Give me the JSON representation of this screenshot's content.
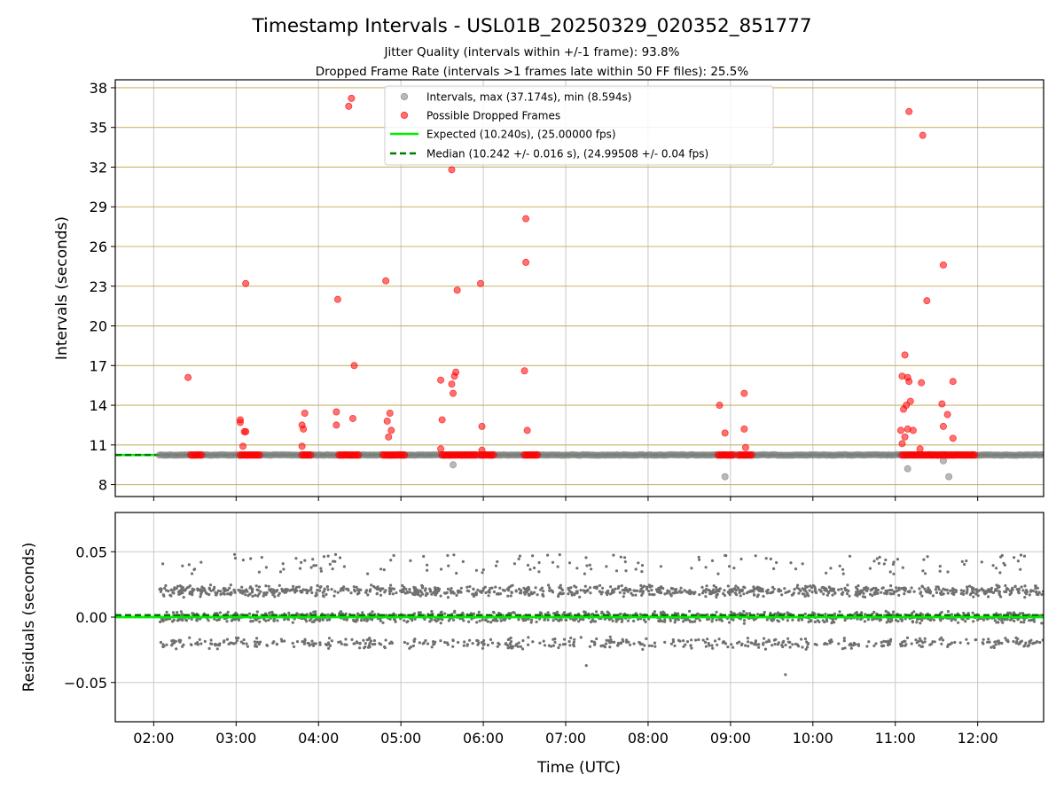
{
  "title": "Timestamp Intervals - USL01B_20250329_020352_851777",
  "subtitle_1": "Jitter Quality (intervals within +/-1 frame): 93.8%",
  "subtitle_2": "Dropped Frame Rate (intervals >1 frames late within 50 FF files): 25.5%",
  "xlabel": "Time (UTC)",
  "colors": {
    "intervals": "#808080",
    "dropped": "#ff0000",
    "expected": "#00ee00",
    "median": "#007a00",
    "residuals": "#707070",
    "top_grid": "#c8b46a",
    "grid": "#c8c8c8"
  },
  "legend": {
    "placement": "upper-center",
    "intervals": "Intervals, max (37.174s), min (8.594s)",
    "dropped": "Possible Dropped Frames",
    "expected": "Expected (10.240s), (25.00000 fps)",
    "median": "Median (10.242 +/- 0.016 s), (24.99508 +/- 0.04 fps)"
  },
  "chart_data": [
    {
      "type": "scatter",
      "panel": "intervals",
      "ylabel": "Intervals (seconds)",
      "xlim": [
        "01:32",
        "12:48"
      ],
      "ylim": [
        7.1,
        38.6
      ],
      "x_ticks": [
        "02:00",
        "03:00",
        "04:00",
        "05:00",
        "06:00",
        "07:00",
        "08:00",
        "09:00",
        "10:00",
        "11:00",
        "12:00"
      ],
      "y_ticks": [
        8,
        11,
        14,
        17,
        20,
        23,
        26,
        29,
        32,
        35,
        38
      ],
      "expected_line": 10.24,
      "median_line": 10.242,
      "normal_band": {
        "value": 10.24,
        "from": "02:04",
        "to": "12:48"
      },
      "dropped_clusters": [
        {
          "from": "02:27",
          "to": "02:35",
          "y": 10.24
        },
        {
          "from": "03:03",
          "to": "03:17",
          "y": 10.24
        },
        {
          "from": "03:48",
          "to": "03:55",
          "y": 10.24
        },
        {
          "from": "04:15",
          "to": "04:30",
          "y": 10.24
        },
        {
          "from": "04:47",
          "to": "05:03",
          "y": 10.24
        },
        {
          "from": "05:30",
          "to": "05:55",
          "y": 10.24
        },
        {
          "from": "05:58",
          "to": "06:08",
          "y": 10.24
        },
        {
          "from": "06:30",
          "to": "06:40",
          "y": 10.24
        },
        {
          "from": "08:51",
          "to": "09:02",
          "y": 10.24
        },
        {
          "from": "09:06",
          "to": "09:16",
          "y": 10.24
        },
        {
          "from": "11:05",
          "to": "11:59",
          "y": 10.24
        }
      ],
      "series": [
        {
          "name": "Intervals, max (37.174s), min (8.594s)",
          "points": [
            {
              "x": "05:38",
              "y": 9.5
            },
            {
              "x": "08:56",
              "y": 8.6
            },
            {
              "x": "11:09",
              "y": 9.2
            },
            {
              "x": "11:35",
              "y": 9.8
            },
            {
              "x": "11:39",
              "y": 8.6
            }
          ]
        },
        {
          "name": "Possible Dropped Frames",
          "points": [
            {
              "x": "02:25",
              "y": 16.1
            },
            {
              "x": "03:03",
              "y": 12.9
            },
            {
              "x": "03:03",
              "y": 12.7
            },
            {
              "x": "03:05",
              "y": 10.9
            },
            {
              "x": "03:06",
              "y": 12.0
            },
            {
              "x": "03:07",
              "y": 23.2
            },
            {
              "x": "03:07",
              "y": 12.0
            },
            {
              "x": "03:48",
              "y": 12.5
            },
            {
              "x": "03:48",
              "y": 10.9
            },
            {
              "x": "03:49",
              "y": 12.2
            },
            {
              "x": "03:50",
              "y": 13.4
            },
            {
              "x": "04:13",
              "y": 13.5
            },
            {
              "x": "04:13",
              "y": 12.5
            },
            {
              "x": "04:14",
              "y": 22.0
            },
            {
              "x": "04:22",
              "y": 36.6
            },
            {
              "x": "04:24",
              "y": 37.2
            },
            {
              "x": "04:25",
              "y": 13.0
            },
            {
              "x": "04:26",
              "y": 17.0
            },
            {
              "x": "04:49",
              "y": 23.4
            },
            {
              "x": "04:50",
              "y": 12.8
            },
            {
              "x": "04:51",
              "y": 11.6
            },
            {
              "x": "04:52",
              "y": 13.4
            },
            {
              "x": "04:53",
              "y": 12.1
            },
            {
              "x": "05:29",
              "y": 15.9
            },
            {
              "x": "05:29",
              "y": 10.7
            },
            {
              "x": "05:30",
              "y": 12.9
            },
            {
              "x": "05:37",
              "y": 31.8
            },
            {
              "x": "05:37",
              "y": 15.6
            },
            {
              "x": "05:38",
              "y": 14.9
            },
            {
              "x": "05:39",
              "y": 16.2
            },
            {
              "x": "05:40",
              "y": 16.5
            },
            {
              "x": "05:41",
              "y": 22.7
            },
            {
              "x": "05:58",
              "y": 23.2
            },
            {
              "x": "05:59",
              "y": 12.4
            },
            {
              "x": "05:59",
              "y": 10.6
            },
            {
              "x": "06:30",
              "y": 16.6
            },
            {
              "x": "06:31",
              "y": 24.8
            },
            {
              "x": "06:31",
              "y": 28.1
            },
            {
              "x": "06:32",
              "y": 12.1
            },
            {
              "x": "08:52",
              "y": 14.0
            },
            {
              "x": "08:56",
              "y": 11.9
            },
            {
              "x": "09:10",
              "y": 14.9
            },
            {
              "x": "09:10",
              "y": 12.2
            },
            {
              "x": "09:11",
              "y": 10.8
            },
            {
              "x": "11:04",
              "y": 12.1
            },
            {
              "x": "11:05",
              "y": 11.1
            },
            {
              "x": "11:05",
              "y": 16.2
            },
            {
              "x": "11:06",
              "y": 13.7
            },
            {
              "x": "11:07",
              "y": 11.6
            },
            {
              "x": "11:07",
              "y": 17.8
            },
            {
              "x": "11:08",
              "y": 14.0
            },
            {
              "x": "11:09",
              "y": 16.1
            },
            {
              "x": "11:09",
              "y": 12.2
            },
            {
              "x": "11:10",
              "y": 36.2
            },
            {
              "x": "11:10",
              "y": 15.8
            },
            {
              "x": "11:11",
              "y": 14.3
            },
            {
              "x": "11:13",
              "y": 12.1
            },
            {
              "x": "11:18",
              "y": 10.7
            },
            {
              "x": "11:19",
              "y": 15.7
            },
            {
              "x": "11:20",
              "y": 34.4
            },
            {
              "x": "11:23",
              "y": 21.9
            },
            {
              "x": "11:34",
              "y": 14.1
            },
            {
              "x": "11:35",
              "y": 12.4
            },
            {
              "x": "11:35",
              "y": 24.6
            },
            {
              "x": "11:38",
              "y": 13.3
            },
            {
              "x": "11:42",
              "y": 15.8
            },
            {
              "x": "11:42",
              "y": 11.5
            }
          ]
        }
      ]
    },
    {
      "type": "scatter",
      "panel": "residuals",
      "ylabel": "Residuals (seconds)",
      "xlabel": "Time (UTC)",
      "xlim": [
        "01:32",
        "12:48"
      ],
      "ylim": [
        -0.08,
        0.08
      ],
      "y_ticks": [
        "0.05",
        "0.00",
        "−0.05"
      ],
      "y_tick_values": [
        0.05,
        0.0,
        -0.05
      ],
      "expected_line": 0.0,
      "median_line": 0.0015,
      "residual_levels": [
        -0.02,
        0.0,
        0.02,
        0.04
      ],
      "residual_spread": 0.005,
      "residual_x_range": [
        "02:04",
        "12:48"
      ],
      "residual_point_count": 2600,
      "residual_outliers": [
        {
          "x": "07:15",
          "y": -0.037
        },
        {
          "x": "09:40",
          "y": -0.044
        }
      ]
    }
  ]
}
